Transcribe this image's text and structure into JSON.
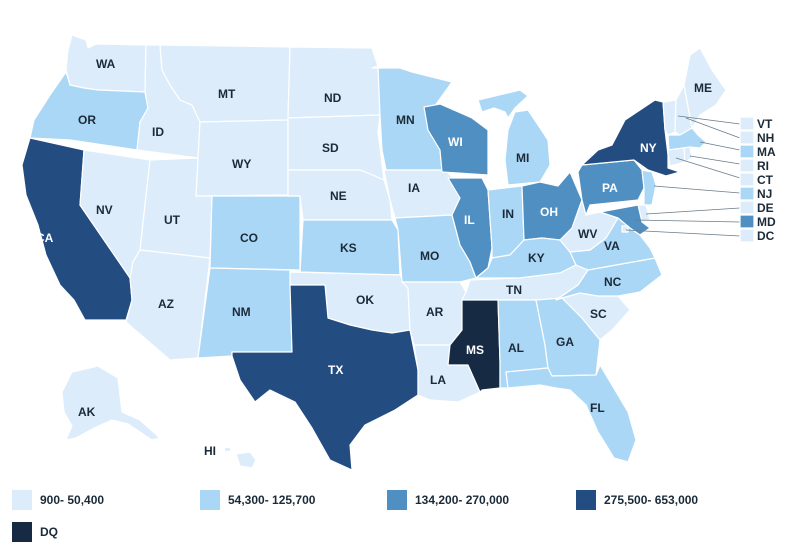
{
  "colors": {
    "c1": "#dcecfb",
    "c2": "#abd7f6",
    "c3": "#4f8fc2",
    "c4": "#234c80",
    "dq": "#172a43"
  },
  "legend": [
    {
      "label": "900- 50,400",
      "color": "#dcecfb"
    },
    {
      "label": "54,300- 125,700",
      "color": "#abd7f6"
    },
    {
      "label": "134,200- 270,000",
      "color": "#4f8fc2"
    },
    {
      "label": "275,500- 653,000",
      "color": "#234c80"
    },
    {
      "label": "DQ",
      "color": "#172a43"
    }
  ],
  "states": {
    "WA": {
      "label": "WA",
      "class": "c1"
    },
    "OR": {
      "label": "OR",
      "class": "c2"
    },
    "CA": {
      "label": "CA",
      "class": "c4"
    },
    "ID": {
      "label": "ID",
      "class": "c1"
    },
    "NV": {
      "label": "NV",
      "class": "c1"
    },
    "MT": {
      "label": "MT",
      "class": "c1"
    },
    "WY": {
      "label": "WY",
      "class": "c1"
    },
    "UT": {
      "label": "UT",
      "class": "c1"
    },
    "AZ": {
      "label": "AZ",
      "class": "c1"
    },
    "CO": {
      "label": "CO",
      "class": "c2"
    },
    "NM": {
      "label": "NM",
      "class": "c2"
    },
    "ND": {
      "label": "ND",
      "class": "c1"
    },
    "SD": {
      "label": "SD",
      "class": "c1"
    },
    "NE": {
      "label": "NE",
      "class": "c1"
    },
    "KS": {
      "label": "KS",
      "class": "c2"
    },
    "OK": {
      "label": "OK",
      "class": "c1"
    },
    "TX": {
      "label": "TX",
      "class": "c4"
    },
    "MN": {
      "label": "MN",
      "class": "c2"
    },
    "IA": {
      "label": "IA",
      "class": "c1"
    },
    "MO": {
      "label": "MO",
      "class": "c2"
    },
    "AR": {
      "label": "AR",
      "class": "c1"
    },
    "LA": {
      "label": "LA",
      "class": "c1"
    },
    "WI": {
      "label": "WI",
      "class": "c3"
    },
    "IL": {
      "label": "IL",
      "class": "c3"
    },
    "MI": {
      "label": "MI",
      "class": "c2"
    },
    "IN": {
      "label": "IN",
      "class": "c2"
    },
    "OH": {
      "label": "OH",
      "class": "c3"
    },
    "KY": {
      "label": "KY",
      "class": "c2"
    },
    "TN": {
      "label": "TN",
      "class": "c1"
    },
    "MS": {
      "label": "MS",
      "class": "dq"
    },
    "AL": {
      "label": "AL",
      "class": "c2"
    },
    "GA": {
      "label": "GA",
      "class": "c2"
    },
    "FL": {
      "label": "FL",
      "class": "c2"
    },
    "SC": {
      "label": "SC",
      "class": "c1"
    },
    "NC": {
      "label": "NC",
      "class": "c2"
    },
    "VA": {
      "label": "VA",
      "class": "c2"
    },
    "WV": {
      "label": "WV",
      "class": "c1"
    },
    "PA": {
      "label": "PA",
      "class": "c3"
    },
    "NY": {
      "label": "NY",
      "class": "c4"
    },
    "ME": {
      "label": "ME",
      "class": "c1"
    },
    "AK": {
      "label": "AK",
      "class": "c1"
    },
    "HI": {
      "label": "HI",
      "class": "c1"
    },
    "VT": {
      "label": "VT",
      "class": "c1"
    },
    "NH": {
      "label": "NH",
      "class": "c1"
    },
    "MA": {
      "label": "MA",
      "class": "c2"
    },
    "RI": {
      "label": "RI",
      "class": "c1"
    },
    "CT": {
      "label": "CT",
      "class": "c1"
    },
    "NJ": {
      "label": "NJ",
      "class": "c2"
    },
    "DE": {
      "label": "DE",
      "class": "c1"
    },
    "MD": {
      "label": "MD",
      "class": "c3"
    },
    "DC": {
      "label": "DC",
      "class": "c1"
    }
  }
}
